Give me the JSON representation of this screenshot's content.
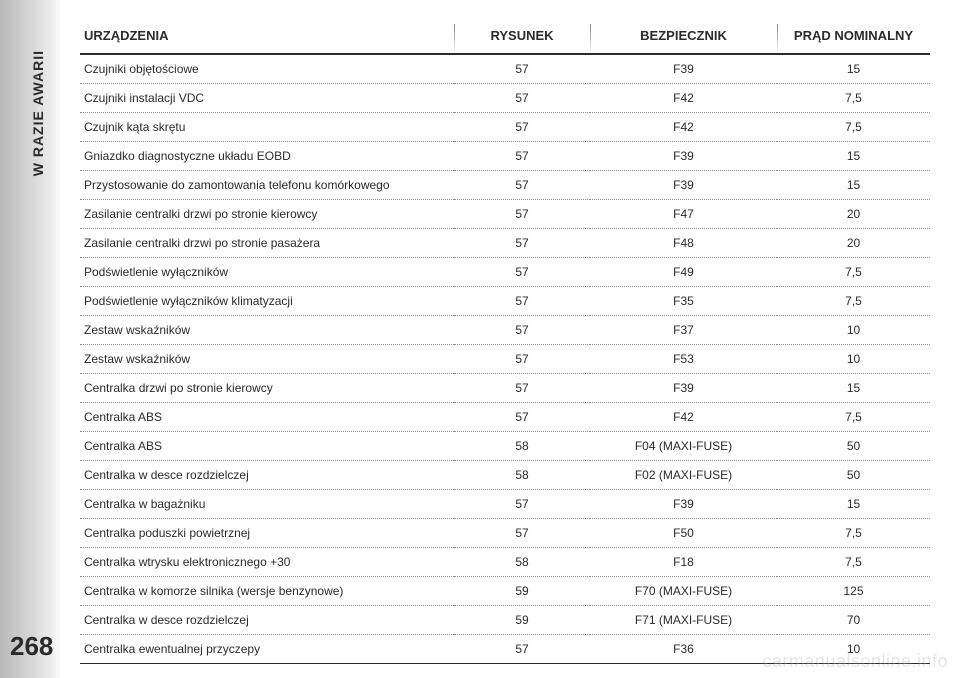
{
  "page": {
    "side_label": "W RAZIE AWARII",
    "number": "268",
    "watermark": "carmanualsonline.info"
  },
  "table": {
    "headers": {
      "device": "URZĄDZENIA",
      "figure": "RYSUNEK",
      "fuse": "BEZPIECZNIK",
      "rating": "PRĄD NOMINALNY"
    },
    "rows": [
      {
        "device": "Czujniki objętościowe",
        "figure": "57",
        "fuse": "F39",
        "rating": "15"
      },
      {
        "device": "Czujniki instalacji VDC",
        "figure": "57",
        "fuse": "F42",
        "rating": "7,5"
      },
      {
        "device": "Czujnik kąta skrętu",
        "figure": "57",
        "fuse": "F42",
        "rating": "7,5"
      },
      {
        "device": "Gniazdko diagnostyczne układu EOBD",
        "figure": "57",
        "fuse": "F39",
        "rating": "15"
      },
      {
        "device": "Przystosowanie do zamontowania telefonu komórkowego",
        "figure": "57",
        "fuse": "F39",
        "rating": "15"
      },
      {
        "device": "Zasilanie centralki drzwi po stronie kierowcy",
        "figure": "57",
        "fuse": "F47",
        "rating": "20"
      },
      {
        "device": "Zasilanie centralki drzwi po stronie pasażera",
        "figure": "57",
        "fuse": "F48",
        "rating": "20"
      },
      {
        "device": "Podświetlenie wyłączników",
        "figure": "57",
        "fuse": "F49",
        "rating": "7,5"
      },
      {
        "device": "Podświetlenie wyłączników klimatyzacji",
        "figure": "57",
        "fuse": "F35",
        "rating": "7,5"
      },
      {
        "device": "Zestaw wskaźników",
        "figure": "57",
        "fuse": "F37",
        "rating": "10"
      },
      {
        "device": "Zestaw wskaźników",
        "figure": "57",
        "fuse": "F53",
        "rating": "10"
      },
      {
        "device": "Centralka drzwi po stronie kierowcy",
        "figure": "57",
        "fuse": "F39",
        "rating": "15"
      },
      {
        "device": "Centralka ABS",
        "figure": "57",
        "fuse": "F42",
        "rating": "7,5"
      },
      {
        "device": "Centralka ABS",
        "figure": "58",
        "fuse": "F04 (MAXI-FUSE)",
        "rating": "50"
      },
      {
        "device": "Centralka w desce rozdzielczej",
        "figure": "58",
        "fuse": "F02 (MAXI-FUSE)",
        "rating": "50"
      },
      {
        "device": "Centralka w bagażniku",
        "figure": "57",
        "fuse": "F39",
        "rating": "15"
      },
      {
        "device": "Centralka poduszki powietrznej",
        "figure": "57",
        "fuse": "F50",
        "rating": "7,5"
      },
      {
        "device": "Centralka wtrysku elektronicznego +30",
        "figure": "58",
        "fuse": "F18",
        "rating": "7,5"
      },
      {
        "device": "Centralka w komorze silnika (wersje benzynowe)",
        "figure": "59",
        "fuse": "F70 (MAXI-FUSE)",
        "rating": "125"
      },
      {
        "device": "Centralka w desce rozdzielczej",
        "figure": "59",
        "fuse": "F71 (MAXI-FUSE)",
        "rating": "70"
      },
      {
        "device": "Centralka ewentualnej przyczepy",
        "figure": "57",
        "fuse": "F36",
        "rating": "10"
      }
    ]
  }
}
